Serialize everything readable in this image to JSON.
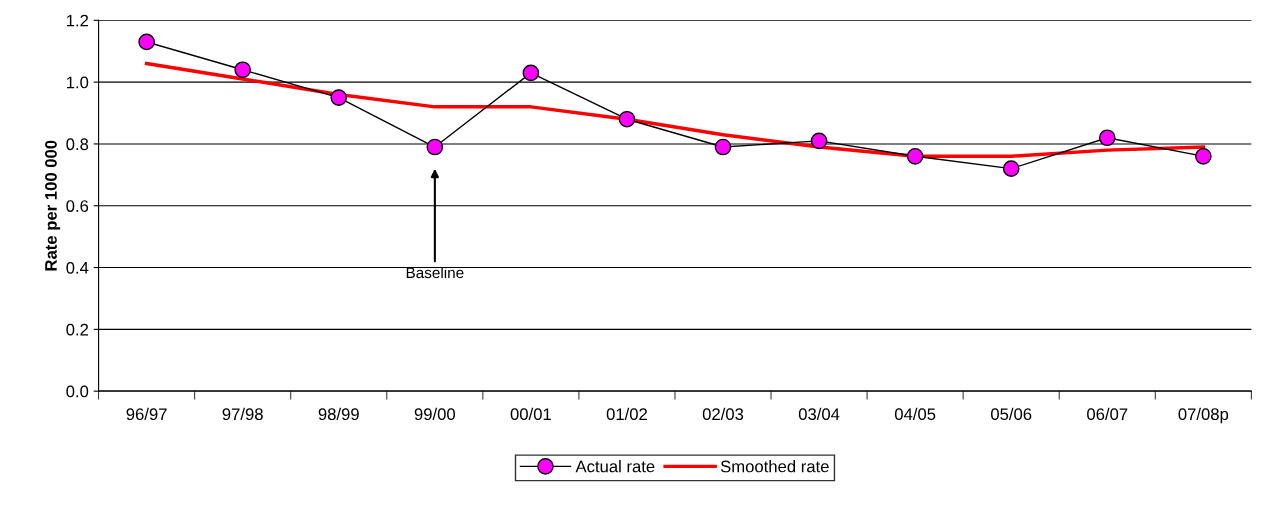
{
  "chart_data": {
    "type": "line",
    "ylabel": "Rate per 100 000",
    "categories": [
      "96/97",
      "97/98",
      "98/99",
      "99/00",
      "00/01",
      "01/02",
      "02/03",
      "03/04",
      "04/05",
      "05/06",
      "06/07",
      "07/08p"
    ],
    "series": [
      {
        "name": "Actual rate",
        "color": "#ff00ff",
        "marker": "circle",
        "values": [
          1.13,
          1.04,
          0.95,
          0.79,
          1.03,
          0.88,
          0.79,
          0.81,
          0.76,
          0.72,
          0.82,
          0.76
        ]
      },
      {
        "name": "Smoothed rate",
        "color": "#ff0000",
        "marker": "none",
        "values": [
          1.06,
          1.01,
          0.96,
          0.92,
          0.92,
          0.88,
          0.83,
          0.79,
          0.76,
          0.76,
          0.78,
          0.79
        ]
      }
    ],
    "annotations": [
      "Baseline"
    ],
    "ylim": [
      0,
      1.2
    ],
    "yticks": [
      {
        "value": 0,
        "label": "0.0"
      },
      {
        "value": 0.2,
        "label": "0.2"
      },
      {
        "value": 0.4,
        "label": "0.4"
      },
      {
        "value": 0.6,
        "label": "0.6"
      },
      {
        "value": 0.8,
        "label": "0.8"
      },
      {
        "value": 1.0,
        "label": "1.0"
      },
      {
        "value": 1.2,
        "label": "1.2"
      }
    ],
    "grid": "y",
    "legend": "bottom",
    "line_style": "solid"
  }
}
